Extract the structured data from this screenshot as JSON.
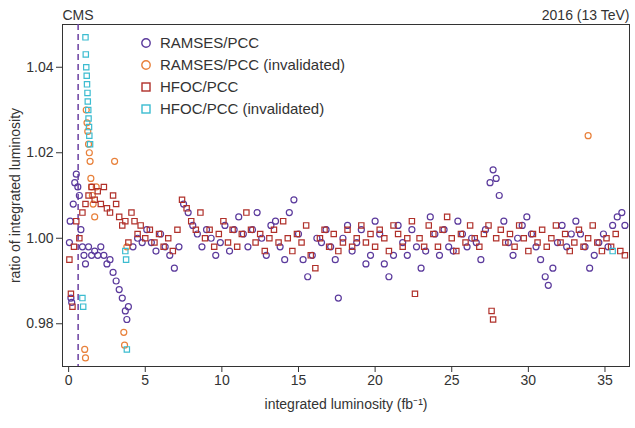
{
  "chart_data": {
    "type": "scatter",
    "annotations": [
      "CMS",
      "2016 (13 TeV)"
    ],
    "x_label": "integrated luminosity (fb⁻¹)",
    "y_label": "ratio of integrated luminosity",
    "xlim": [
      -0.4,
      36.6
    ],
    "xticks": [
      0,
      5,
      10,
      15,
      20,
      25,
      30,
      35
    ],
    "ylim": [
      0.97,
      1.05
    ],
    "yticks": [
      0.98,
      {
        "value": 1.0,
        "label": "1.00"
      },
      1.02,
      1.04
    ],
    "legend": "top-left",
    "reference_lines": [
      {
        "x": 0.62,
        "color": "#6a3fa0",
        "line_style": "dashed"
      }
    ],
    "series": [
      {
        "name": "RAMSES/PCC",
        "color": "#5b3a9c",
        "marker": "circle",
        "x": [
          0.05,
          0.1,
          0.15,
          0.2,
          0.3,
          0.4,
          0.5,
          0.6,
          0.7,
          0.8,
          0.9,
          1.0,
          1.1,
          1.3,
          1.5,
          1.7,
          1.9,
          2.1,
          2.3,
          2.5,
          2.7,
          2.9,
          3.1,
          3.3,
          3.5,
          3.7,
          3.8,
          3.9,
          4.2,
          4.5,
          4.8,
          5.1,
          5.4,
          5.7,
          6.0,
          6.3,
          6.6,
          6.9,
          7.2,
          7.5,
          7.8,
          8.1,
          8.4,
          8.7,
          9.0,
          9.3,
          9.6,
          9.9,
          10.2,
          10.5,
          10.8,
          11.1,
          11.4,
          11.7,
          12.0,
          12.3,
          12.6,
          12.9,
          13.2,
          13.5,
          13.8,
          14.1,
          14.4,
          14.7,
          15.0,
          15.3,
          15.6,
          15.9,
          16.2,
          16.5,
          16.8,
          17.1,
          17.4,
          17.6,
          17.9,
          18.2,
          18.5,
          18.8,
          19.1,
          19.4,
          19.7,
          20.0,
          20.3,
          20.6,
          20.9,
          21.2,
          21.5,
          21.8,
          22.1,
          22.4,
          22.7,
          23.0,
          23.3,
          23.6,
          23.9,
          24.2,
          24.5,
          24.8,
          25.1,
          25.4,
          25.7,
          26.0,
          26.3,
          26.6,
          26.9,
          27.2,
          27.5,
          27.7,
          27.9,
          28.1,
          28.4,
          28.7,
          29.0,
          29.3,
          29.6,
          29.9,
          30.2,
          30.5,
          30.8,
          31.1,
          31.3,
          31.6,
          31.9,
          32.2,
          32.5,
          32.8,
          33.1,
          33.4,
          33.7,
          34.0,
          34.3,
          34.6,
          34.9,
          35.2,
          35.5,
          35.8,
          36.1,
          36.3
        ],
        "values": [
          0.999,
          1.004,
          0.986,
          0.985,
          1.008,
          1.013,
          1.015,
          1.012,
          1.01,
          1.002,
          0.998,
          0.996,
          0.994,
          0.998,
          0.996,
          0.997,
          0.996,
          0.998,
          0.996,
          0.994,
          0.995,
          0.992,
          0.99,
          0.988,
          0.986,
          0.983,
          0.981,
          0.984,
          0.998,
          1.0,
          0.999,
          1.002,
          0.999,
          0.997,
          1.001,
          0.998,
          0.996,
          0.993,
          0.998,
          1.008,
          1.006,
          1.003,
          1.001,
          0.998,
          1.002,
          1.0,
          0.996,
          0.999,
          1.003,
          0.997,
          1.002,
          1.005,
          1.001,
          0.998,
          1.002,
          1.006,
          1.0,
          0.996,
          1.003,
          1.004,
          0.998,
          0.995,
          1.006,
          1.009,
          1.001,
          0.995,
          0.991,
          0.996,
          1.0,
          0.999,
          1.002,
          0.998,
          0.995,
          0.986,
          1.0,
          1.003,
          0.997,
          0.999,
          1.002,
          0.994,
          0.996,
          1.004,
          1.001,
          0.994,
          0.991,
          0.996,
          1.003,
          0.999,
          0.996,
          1.002,
          0.998,
          0.993,
          0.997,
          1.005,
          1.001,
          0.996,
          1.002,
          0.998,
          0.997,
          1.004,
          1.001,
          0.998,
          1.0,
          0.999,
          0.995,
          1.002,
          1.013,
          1.016,
          1.014,
          1.01,
          1.004,
          0.999,
          0.996,
          1.0,
          1.003,
          1.005,
          1.001,
          0.998,
          0.995,
          0.991,
          0.989,
          0.993,
          0.999,
          1.003,
          0.998,
          1.001,
          1.004,
          1.001,
          0.998,
          0.993,
          0.996,
          0.999,
          1.001,
          0.998,
          1.003,
          1.005,
          1.006,
          1.003
        ]
      },
      {
        "name": "RAMSES/PCC (invalidated)",
        "color": "#e8803a",
        "marker": "circle",
        "x": [
          1.05,
          1.1,
          1.15,
          1.2,
          1.25,
          1.3,
          1.35,
          1.4,
          1.45,
          1.5,
          1.55,
          1.6,
          1.7,
          1.8,
          3.0,
          3.6,
          3.65,
          3.8,
          33.9
        ],
        "values": [
          0.974,
          0.972,
          1.03,
          1.027,
          1.025,
          1.022,
          1.02,
          1.018,
          1.014,
          1.012,
          1.01,
          1.008,
          1.005,
          1.012,
          1.018,
          0.978,
          0.975,
          0.998,
          1.024
        ]
      },
      {
        "name": "HFOC/PCC",
        "color": "#b0302a",
        "marker": "square",
        "x": [
          0.05,
          0.15,
          0.25,
          0.35,
          0.5,
          0.7,
          0.9,
          1.1,
          1.3,
          1.5,
          1.7,
          1.9,
          2.1,
          2.3,
          2.5,
          2.7,
          2.9,
          3.1,
          3.3,
          3.5,
          3.7,
          3.9,
          4.1,
          4.3,
          4.5,
          4.7,
          5.0,
          5.3,
          5.6,
          5.9,
          6.2,
          6.5,
          6.8,
          7.1,
          7.4,
          7.7,
          8.0,
          8.3,
          8.6,
          8.9,
          9.2,
          9.5,
          9.8,
          10.1,
          10.4,
          10.7,
          11.0,
          11.3,
          11.6,
          11.9,
          12.2,
          12.5,
          12.8,
          13.1,
          13.4,
          13.7,
          14.0,
          14.3,
          14.6,
          14.9,
          15.2,
          15.5,
          15.8,
          16.1,
          16.4,
          16.7,
          17.0,
          17.3,
          17.6,
          17.9,
          18.2,
          18.5,
          18.8,
          19.1,
          19.4,
          19.7,
          20.0,
          20.3,
          20.6,
          20.9,
          21.2,
          21.5,
          21.8,
          22.1,
          22.4,
          22.6,
          22.9,
          23.2,
          23.5,
          23.8,
          24.1,
          24.4,
          24.7,
          25.0,
          25.3,
          25.6,
          25.9,
          26.2,
          26.5,
          26.8,
          27.1,
          27.4,
          27.6,
          27.7,
          27.9,
          28.2,
          28.5,
          28.8,
          29.1,
          29.4,
          29.7,
          30.0,
          30.3,
          30.6,
          30.9,
          31.2,
          31.5,
          31.8,
          32.1,
          32.4,
          32.7,
          33.0,
          33.3,
          33.6,
          33.9,
          34.2,
          34.5,
          34.8,
          35.1,
          35.4,
          35.7,
          36.0,
          36.3
        ],
        "values": [
          0.995,
          0.987,
          0.984,
          0.998,
          1.004,
          1.0,
          1.006,
          1.008,
          1.01,
          1.012,
          1.009,
          1.011,
          1.008,
          1.012,
          1.007,
          1.006,
          1.01,
          1.008,
          1.005,
          1.003,
          1.004,
          0.999,
          1.006,
          1.004,
          1.001,
          1.003,
          1.0,
          1.002,
          0.999,
          1.001,
          0.998,
          1.0,
          0.997,
          1.002,
          1.009,
          1.007,
          1.004,
          1.002,
          1.006,
          1.0,
          1.002,
          0.998,
          1.001,
          1.004,
          0.999,
          1.002,
          0.998,
          1.001,
          1.006,
          1.002,
          0.999,
          1.001,
          0.997,
          1.0,
          1.002,
          0.999,
          1.004,
          1.0,
          0.997,
          1.001,
          0.999,
          1.003,
          0.996,
          0.993,
          1.0,
          1.002,
          0.998,
          1.001,
          0.997,
          0.999,
          1.002,
          0.998,
          1.0,
          1.003,
          0.999,
          1.001,
          0.998,
          1.002,
          1.0,
          0.997,
          1.003,
          1.001,
          0.998,
          1.0,
          1.004,
          0.987,
          1.0,
          0.998,
          1.003,
          1.001,
          0.998,
          1.002,
          1.005,
          1.0,
          0.997,
          1.001,
          0.999,
          1.003,
          1.0,
          0.998,
          1.001,
          1.003,
          0.983,
          0.981,
          1.0,
          1.002,
          0.999,
          1.001,
          0.998,
          1.003,
          1.0,
          0.997,
          1.001,
          0.999,
          1.002,
          0.998,
          1.0,
          1.003,
          0.999,
          1.001,
          0.997,
          0.999,
          1.002,
          0.998,
          1.0,
          1.003,
          0.999,
          0.997,
          1.0,
          0.998,
          1.001,
          0.997,
          0.996
        ]
      },
      {
        "name": "HFOC/PCC (invalidated)",
        "color": "#3bbcd0",
        "marker": "square",
        "x": [
          0.9,
          0.95,
          1.1,
          1.12,
          1.15,
          1.18,
          1.2,
          1.23,
          1.25,
          1.28,
          1.3,
          1.33,
          1.35,
          1.4,
          3.7,
          3.75,
          3.8,
          35.5
        ],
        "values": [
          0.986,
          0.984,
          1.047,
          1.043,
          1.04,
          1.038,
          1.036,
          1.034,
          1.032,
          1.03,
          1.028,
          1.026,
          1.024,
          1.022,
          0.997,
          0.995,
          0.974,
          0.997
        ]
      }
    ]
  }
}
